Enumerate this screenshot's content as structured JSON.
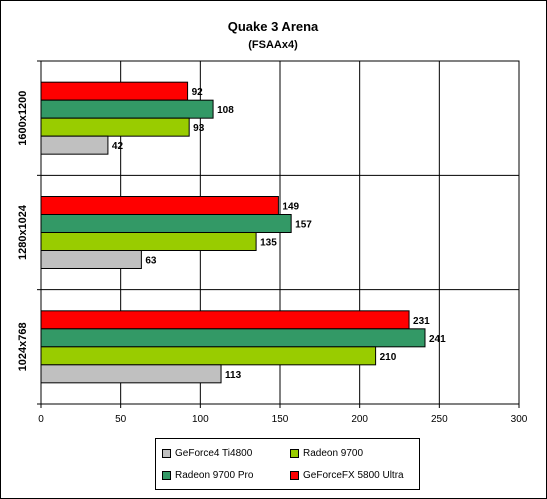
{
  "chart_data": {
    "type": "bar",
    "orientation": "horizontal",
    "title": "Quake 3 Arena",
    "subtitle": "(FSAAx4)",
    "categories": [
      "1600x1200",
      "1280x1024",
      "1024x768"
    ],
    "series": [
      {
        "name": "GeForceFX 5800 Ultra",
        "color": "#ff0000",
        "values": [
          92,
          149,
          231
        ]
      },
      {
        "name": "Radeon 9700 Pro",
        "color": "#339966",
        "values": [
          108,
          157,
          241
        ]
      },
      {
        "name": "Radeon 9700",
        "color": "#99cc00",
        "values": [
          93,
          135,
          210
        ]
      },
      {
        "name": "GeForce4 Ti4800",
        "color": "#c0c0c0",
        "values": [
          42,
          63,
          113
        ]
      }
    ],
    "xlim": [
      0,
      300
    ],
    "xticks": [
      "0",
      "50",
      "100",
      "150",
      "200",
      "250",
      "300"
    ],
    "grid": "vertical",
    "legend_position": "bottom"
  },
  "legend": [
    {
      "label": "GeForce4 Ti4800",
      "color": "#c0c0c0"
    },
    {
      "label": "Radeon 9700",
      "color": "#99cc00"
    },
    {
      "label": "Radeon 9700 Pro",
      "color": "#339966"
    },
    {
      "label": "GeForceFX 5800 Ultra",
      "color": "#ff0000"
    }
  ]
}
